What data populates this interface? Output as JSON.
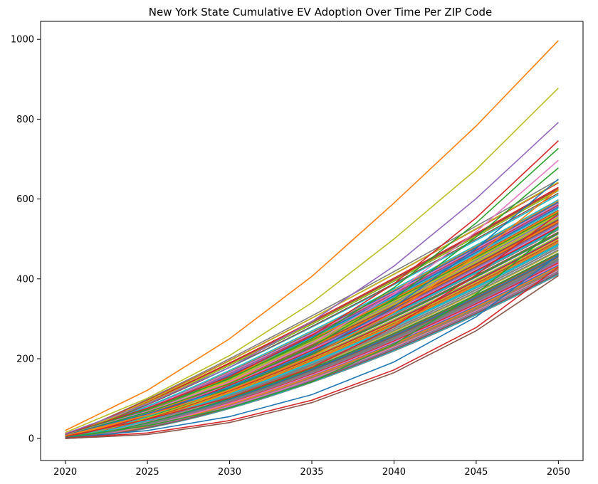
{
  "chart_data": {
    "type": "line",
    "title": "New York State Cumulative EV Adoption Over Time Per ZIP Code",
    "xlabel": "",
    "ylabel": "",
    "xlim": [
      2018.5,
      2051.5
    ],
    "ylim": [
      -55,
      1045
    ],
    "x_ticks": [
      2020,
      2025,
      2030,
      2035,
      2040,
      2045,
      2050
    ],
    "y_ticks": [
      0,
      200,
      400,
      600,
      800,
      1000
    ],
    "grid": false,
    "legend": "none",
    "x": [
      2020,
      2025,
      2030,
      2035,
      2040,
      2045,
      2050
    ],
    "palette": [
      "#1f77b4",
      "#ff7f0e",
      "#2ca02c",
      "#d62728",
      "#9467bd",
      "#8c564b",
      "#e377c2",
      "#7f7f7f",
      "#bcbd22",
      "#17becf"
    ],
    "highlighted_series": [
      {
        "color": "#ff7f0e",
        "values": [
          20,
          121,
          250,
          406,
          590,
          783,
          997
        ]
      },
      {
        "color": "#bcbd22",
        "values": [
          15,
          101,
          208,
          340,
          500,
          674,
          878
        ]
      },
      {
        "color": "#9467bd",
        "values": [
          12,
          87,
          178,
          293,
          432,
          601,
          792
        ]
      },
      {
        "color": "#d62728",
        "values": [
          10,
          76,
          155,
          258,
          388,
          553,
          746
        ]
      },
      {
        "color": "#2ca02c",
        "values": [
          9,
          73,
          150,
          250,
          378,
          540,
          727
        ]
      },
      {
        "color": "#e377c2",
        "values": [
          9,
          68,
          142,
          238,
          362,
          518,
          697
        ]
      },
      {
        "color": "#2ca02c",
        "values": [
          8,
          66,
          137,
          230,
          350,
          505,
          678
        ]
      },
      {
        "color": "#1f77b4",
        "values": [
          8,
          62,
          128,
          215,
          330,
          476,
          650
        ]
      },
      {
        "color": "#ff7f0e",
        "values": [
          7,
          58,
          121,
          206,
          316,
          457,
          625
        ]
      },
      {
        "color": "#d62728",
        "values": [
          5,
          48,
          102,
          178,
          280,
          410,
          563
        ]
      },
      {
        "color": "#2ca02c",
        "values": [
          3,
          32,
          77,
          142,
          236,
          362,
          530
        ]
      },
      {
        "color": "#1f77b4",
        "values": [
          2,
          20,
          55,
          110,
          192,
          305,
          460
        ]
      },
      {
        "color": "#d62728",
        "values": [
          1,
          14,
          45,
          96,
          172,
          278,
          430
        ]
      },
      {
        "color": "#8c564b",
        "values": [
          0,
          10,
          40,
          90,
          165,
          270,
          408
        ]
      }
    ],
    "bulk_series": {
      "count": 150,
      "start_range": [
        0,
        12
      ],
      "end_range": [
        410,
        650
      ]
    }
  }
}
